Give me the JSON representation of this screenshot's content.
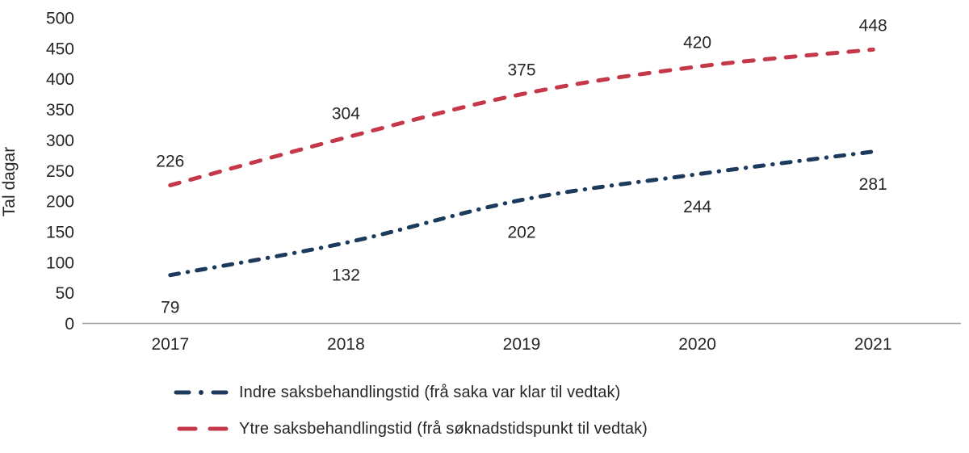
{
  "chart_data": {
    "type": "line",
    "title": "",
    "xlabel": "",
    "ylabel": "Tal dagar",
    "categories": [
      "2017",
      "2018",
      "2019",
      "2020",
      "2021"
    ],
    "y_ticks": [
      0,
      50,
      100,
      150,
      200,
      250,
      300,
      350,
      400,
      450,
      500
    ],
    "ylim": [
      0,
      500
    ],
    "grid": false,
    "legend_position": "bottom-left",
    "series": [
      {
        "name": "Indre saksbehandlingstid (frå saka var klar til vedtak)",
        "values": [
          79,
          132,
          202,
          244,
          281
        ],
        "color": "#1B3A5C",
        "line_style": "dash-dot",
        "label_placement": "below"
      },
      {
        "name": "Ytre saksbehandlingstid (frå søknadstidspunkt til vedtak)",
        "values": [
          226,
          304,
          375,
          420,
          448
        ],
        "color": "#C4384A",
        "line_style": "dash",
        "label_placement": "above"
      }
    ]
  },
  "colors": {
    "text": "#262626",
    "axis_line": "#9E9E9E",
    "background": "#FFFFFF",
    "series_indre": "#1B3A5C",
    "series_ytre": "#C4384A"
  }
}
